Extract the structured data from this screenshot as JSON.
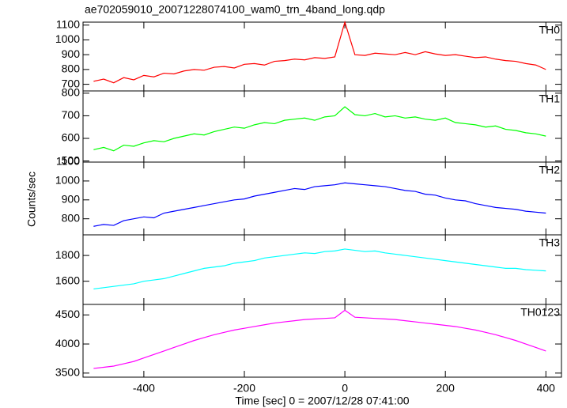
{
  "chart_data": [
    {
      "type": "line",
      "title": "ae702059010_20071228074100_wam0_trn_4band_long.qdp",
      "x": [
        -500,
        -480,
        -460,
        -440,
        -420,
        -400,
        -380,
        -360,
        -340,
        -320,
        -300,
        -280,
        -260,
        -240,
        -220,
        -200,
        -180,
        -160,
        -140,
        -120,
        -100,
        -80,
        -60,
        -40,
        -20,
        0,
        20,
        40,
        60,
        80,
        100,
        120,
        140,
        160,
        180,
        200,
        220,
        240,
        260,
        280,
        300,
        320,
        340,
        360,
        380,
        400
      ],
      "series": [
        {
          "name": "TH0",
          "color": "#ff0000",
          "values": [
            720,
            735,
            710,
            745,
            730,
            760,
            750,
            775,
            770,
            790,
            800,
            795,
            815,
            820,
            810,
            835,
            840,
            830,
            855,
            860,
            870,
            865,
            880,
            875,
            885,
            1120,
            900,
            895,
            910,
            905,
            900,
            915,
            900,
            920,
            905,
            895,
            900,
            890,
            880,
            885,
            870,
            860,
            855,
            840,
            830,
            800
          ]
        }
      ],
      "xlim": [
        -521,
        431
      ],
      "ylim": [
        655,
        1120
      ],
      "yticks": [
        700,
        800,
        900,
        1000,
        1100
      ]
    },
    {
      "type": "line",
      "x": [
        -500,
        -480,
        -460,
        -440,
        -420,
        -400,
        -380,
        -360,
        -340,
        -320,
        -300,
        -280,
        -260,
        -240,
        -220,
        -200,
        -180,
        -160,
        -140,
        -120,
        -100,
        -80,
        -60,
        -40,
        -20,
        0,
        20,
        40,
        60,
        80,
        100,
        120,
        140,
        160,
        180,
        200,
        220,
        240,
        260,
        280,
        300,
        320,
        340,
        360,
        380,
        400
      ],
      "series": [
        {
          "name": "TH1",
          "color": "#00ff00",
          "values": [
            550,
            560,
            545,
            570,
            565,
            580,
            590,
            585,
            600,
            610,
            620,
            615,
            630,
            640,
            650,
            645,
            660,
            670,
            665,
            680,
            685,
            690,
            680,
            695,
            700,
            740,
            705,
            700,
            710,
            695,
            700,
            690,
            695,
            685,
            680,
            690,
            670,
            665,
            660,
            650,
            655,
            640,
            635,
            625,
            620,
            610
          ]
        }
      ],
      "xlim": [
        -521,
        431
      ],
      "ylim": [
        495,
        810
      ],
      "yticks": [
        500,
        600,
        700,
        800
      ]
    },
    {
      "type": "line",
      "ylabel": "Counts/sec",
      "x": [
        -500,
        -480,
        -460,
        -440,
        -420,
        -400,
        -380,
        -360,
        -340,
        -320,
        -300,
        -280,
        -260,
        -240,
        -220,
        -200,
        -180,
        -160,
        -140,
        -120,
        -100,
        -80,
        -60,
        -40,
        -20,
        0,
        20,
        40,
        60,
        80,
        100,
        120,
        140,
        160,
        180,
        200,
        220,
        240,
        260,
        280,
        300,
        320,
        340,
        360,
        380,
        400
      ],
      "series": [
        {
          "name": "TH2",
          "color": "#0000ff",
          "values": [
            760,
            770,
            765,
            790,
            800,
            810,
            805,
            830,
            840,
            850,
            860,
            870,
            880,
            890,
            900,
            905,
            920,
            930,
            940,
            950,
            960,
            955,
            970,
            975,
            980,
            990,
            985,
            980,
            975,
            970,
            960,
            950,
            945,
            930,
            925,
            910,
            900,
            895,
            880,
            870,
            860,
            855,
            850,
            840,
            835,
            830
          ]
        }
      ],
      "xlim": [
        -521,
        431
      ],
      "ylim": [
        715,
        1100
      ],
      "yticks": [
        800,
        900,
        1000,
        1100
      ]
    },
    {
      "type": "line",
      "x": [
        -500,
        -480,
        -460,
        -440,
        -420,
        -400,
        -380,
        -360,
        -340,
        -320,
        -300,
        -280,
        -260,
        -240,
        -220,
        -200,
        -180,
        -160,
        -140,
        -120,
        -100,
        -80,
        -60,
        -40,
        -20,
        0,
        20,
        40,
        60,
        80,
        100,
        120,
        140,
        160,
        180,
        200,
        220,
        240,
        260,
        280,
        300,
        320,
        340,
        360,
        380,
        400
      ],
      "series": [
        {
          "name": "TH3",
          "color": "#00ffff",
          "values": [
            1540,
            1550,
            1560,
            1570,
            1580,
            1600,
            1610,
            1620,
            1640,
            1660,
            1680,
            1700,
            1710,
            1720,
            1740,
            1750,
            1760,
            1780,
            1790,
            1800,
            1810,
            1820,
            1815,
            1830,
            1835,
            1850,
            1840,
            1830,
            1835,
            1820,
            1810,
            1800,
            1790,
            1780,
            1770,
            1760,
            1750,
            1740,
            1730,
            1720,
            1710,
            1700,
            1700,
            1690,
            1685,
            1680
          ]
        }
      ],
      "xlim": [
        -521,
        431
      ],
      "ylim": [
        1420,
        1960
      ],
      "yticks": [
        1600,
        1800
      ]
    },
    {
      "type": "line",
      "xlabel": "Time [sec] 0 = 2007/12/28 07:41:00",
      "x": [
        -500,
        -480,
        -460,
        -440,
        -420,
        -400,
        -380,
        -360,
        -340,
        -320,
        -300,
        -280,
        -260,
        -240,
        -220,
        -200,
        -180,
        -160,
        -140,
        -120,
        -100,
        -80,
        -60,
        -40,
        -20,
        0,
        20,
        40,
        60,
        80,
        100,
        120,
        140,
        160,
        180,
        200,
        220,
        240,
        260,
        280,
        300,
        320,
        340,
        360,
        380,
        400
      ],
      "series": [
        {
          "name": "TH0123",
          "color": "#ff00ff",
          "values": [
            3580,
            3600,
            3620,
            3660,
            3700,
            3760,
            3820,
            3880,
            3940,
            4000,
            4060,
            4110,
            4160,
            4200,
            4240,
            4270,
            4300,
            4330,
            4360,
            4380,
            4400,
            4420,
            4430,
            4440,
            4450,
            4580,
            4460,
            4450,
            4440,
            4430,
            4420,
            4400,
            4380,
            4360,
            4340,
            4320,
            4300,
            4270,
            4240,
            4200,
            4160,
            4110,
            4060,
            4000,
            3940,
            3880
          ]
        }
      ],
      "xlim": [
        -521,
        431
      ],
      "ylim": [
        3430,
        4680
      ],
      "yticks": [
        3500,
        4000,
        4500
      ],
      "xticks": [
        -400,
        -200,
        0,
        200,
        400
      ]
    }
  ]
}
